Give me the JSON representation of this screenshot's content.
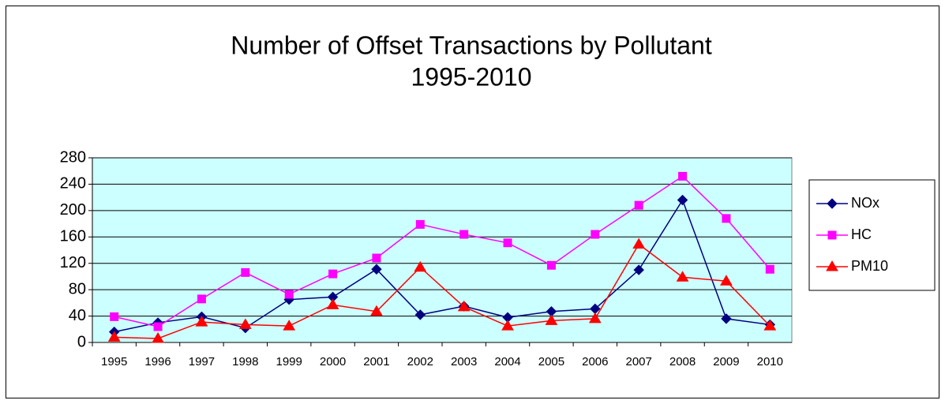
{
  "chart_data": {
    "type": "line",
    "title": "Number  of Offset Transactions by Pollutant",
    "subtitle": "1995-2010",
    "categories": [
      "1995",
      "1996",
      "1997",
      "1998",
      "1999",
      "2000",
      "2001",
      "2002",
      "2003",
      "2004",
      "2005",
      "2006",
      "2007",
      "2008",
      "2009",
      "2010"
    ],
    "series": [
      {
        "name": "NOx",
        "color": "#000080",
        "marker": "diamond",
        "values": [
          16,
          30,
          39,
          22,
          65,
          69,
          111,
          42,
          55,
          38,
          47,
          51,
          110,
          216,
          36,
          27
        ]
      },
      {
        "name": "HC",
        "color": "#ff00ff",
        "marker": "square",
        "values": [
          39,
          24,
          66,
          106,
          73,
          104,
          128,
          179,
          164,
          151,
          117,
          164,
          208,
          252,
          188,
          111
        ]
      },
      {
        "name": "PM10",
        "color": "#ff0000",
        "marker": "triangle",
        "values": [
          8,
          6,
          31,
          27,
          25,
          57,
          47,
          114,
          54,
          25,
          33,
          36,
          149,
          99,
          93,
          25
        ]
      }
    ],
    "ylim": [
      0,
      280
    ],
    "yticks": [
      0,
      40,
      80,
      120,
      160,
      200,
      240,
      280
    ],
    "grid": true,
    "legend": "right"
  }
}
